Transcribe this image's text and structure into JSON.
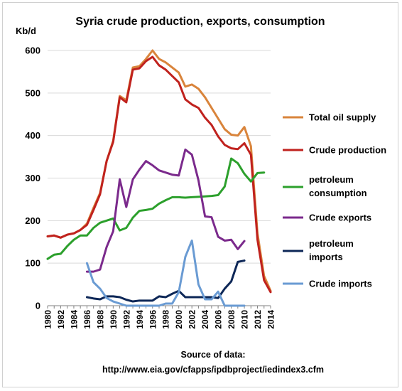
{
  "chart_data": {
    "type": "line",
    "title": "Syria crude production, exports, consumption",
    "ylabel": "Kb/d",
    "xlabel": "",
    "xlim": [
      1980,
      2014
    ],
    "ylim": [
      0,
      600
    ],
    "yticks": [
      "0",
      "100",
      "200",
      "300",
      "400",
      "500",
      "600"
    ],
    "xticks": [
      "1980",
      "1982",
      "1984",
      "1986",
      "1988",
      "1990",
      "1992",
      "1994",
      "1996",
      "1998",
      "2000",
      "2002",
      "2004",
      "2006",
      "2008",
      "2010",
      "2012",
      "2014"
    ],
    "grid": "horizontal",
    "legend_position": "right",
    "source_lines": [
      "Source of data:",
      "http://www.eia.gov/cfapps/ipdbproject/iedindex3.cfm"
    ],
    "series": [
      {
        "name": "Total oil supply",
        "color": "#d9843b",
        "x": [
          1980,
          1981,
          1982,
          1983,
          1984,
          1985,
          1986,
          1987,
          1988,
          1989,
          1990,
          1991,
          1992,
          1993,
          1994,
          1995,
          1996,
          1997,
          1998,
          1999,
          2000,
          2001,
          2002,
          2003,
          2004,
          2005,
          2006,
          2007,
          2008,
          2009,
          2010,
          2011,
          2012,
          2013,
          2014
        ],
        "values": [
          163,
          165,
          160,
          167,
          170,
          178,
          193,
          230,
          265,
          340,
          388,
          493,
          483,
          560,
          563,
          580,
          600,
          580,
          572,
          560,
          548,
          515,
          520,
          510,
          490,
          465,
          440,
          415,
          402,
          400,
          420,
          375,
          170,
          70,
          35
        ]
      },
      {
        "name": "Crude production",
        "color": "#c0221e",
        "x": [
          1980,
          1981,
          1982,
          1983,
          1984,
          1985,
          1986,
          1987,
          1988,
          1989,
          1990,
          1991,
          1992,
          1993,
          1994,
          1995,
          1996,
          1997,
          1998,
          1999,
          2000,
          2001,
          2002,
          2003,
          2004,
          2005,
          2006,
          2007,
          2008,
          2009,
          2010,
          2011,
          2012,
          2013,
          2014
        ],
        "values": [
          163,
          165,
          160,
          167,
          170,
          178,
          190,
          225,
          262,
          340,
          385,
          490,
          478,
          555,
          558,
          575,
          585,
          565,
          555,
          540,
          525,
          485,
          473,
          465,
          442,
          425,
          398,
          378,
          370,
          368,
          382,
          355,
          155,
          60,
          32
        ]
      },
      {
        "name": "petroleum consumption",
        "color": "#2ca02c",
        "x": [
          1980,
          1981,
          1982,
          1983,
          1984,
          1985,
          1986,
          1987,
          1988,
          1989,
          1990,
          1991,
          1992,
          1993,
          1994,
          1995,
          1996,
          1997,
          1998,
          1999,
          2000,
          2001,
          2002,
          2003,
          2004,
          2005,
          2006,
          2007,
          2008,
          2009,
          2010,
          2011,
          2012,
          2013
        ],
        "values": [
          110,
          120,
          122,
          140,
          155,
          165,
          165,
          183,
          195,
          200,
          205,
          177,
          183,
          207,
          223,
          225,
          228,
          240,
          248,
          255,
          255,
          254,
          255,
          256,
          257,
          258,
          260,
          280,
          346,
          335,
          310,
          292,
          312,
          313
        ]
      },
      {
        "name": "Crude exports",
        "color": "#7b2a8c",
        "x": [
          1986,
          1987,
          1988,
          1989,
          1990,
          1991,
          1992,
          1993,
          1994,
          1995,
          1996,
          1997,
          1998,
          1999,
          2000,
          2001,
          2002,
          2003,
          2004,
          2005,
          2006,
          2007,
          2008,
          2009,
          2010
        ],
        "values": [
          80,
          80,
          85,
          138,
          175,
          297,
          232,
          297,
          320,
          340,
          330,
          318,
          313,
          308,
          306,
          367,
          355,
          295,
          210,
          208,
          162,
          153,
          155,
          133,
          152
        ]
      },
      {
        "name": "petroleum imports",
        "color": "#0d2757",
        "x": [
          1986,
          1987,
          1988,
          1989,
          1990,
          1991,
          1992,
          1993,
          1994,
          1995,
          1996,
          1997,
          1998,
          1999,
          2000,
          2001,
          2002,
          2003,
          2004,
          2005,
          2006,
          2007,
          2008,
          2009,
          2010
        ],
        "values": [
          20,
          17,
          15,
          22,
          22,
          20,
          14,
          10,
          12,
          12,
          12,
          22,
          20,
          28,
          35,
          20,
          20,
          20,
          20,
          20,
          18,
          40,
          57,
          103,
          106
        ]
      },
      {
        "name": "Crude imports",
        "color": "#6a9bd3",
        "x": [
          1986,
          1987,
          1988,
          1989,
          1990,
          1991,
          1992,
          1993,
          1994,
          1995,
          1996,
          1997,
          1998,
          1999,
          2000,
          2001,
          2002,
          2003,
          2004,
          2005,
          2006,
          2007,
          2008,
          2009,
          2010
        ],
        "values": [
          100,
          55,
          40,
          18,
          10,
          5,
          0,
          0,
          0,
          0,
          0,
          0,
          5,
          5,
          32,
          115,
          153,
          50,
          15,
          15,
          33,
          0,
          0,
          0,
          0
        ]
      }
    ],
    "legend": [
      {
        "lines": [
          "Total oil supply"
        ],
        "color": "#d9843b"
      },
      {
        "lines": [
          "Crude production"
        ],
        "color": "#c0221e"
      },
      {
        "lines": [
          "petroleum",
          "consumption"
        ],
        "color": "#2ca02c"
      },
      {
        "lines": [
          "Crude exports"
        ],
        "color": "#7b2a8c"
      },
      {
        "lines": [
          "petroleum",
          "imports"
        ],
        "color": "#0d2757"
      },
      {
        "lines": [
          "Crude imports"
        ],
        "color": "#6a9bd3"
      }
    ]
  }
}
